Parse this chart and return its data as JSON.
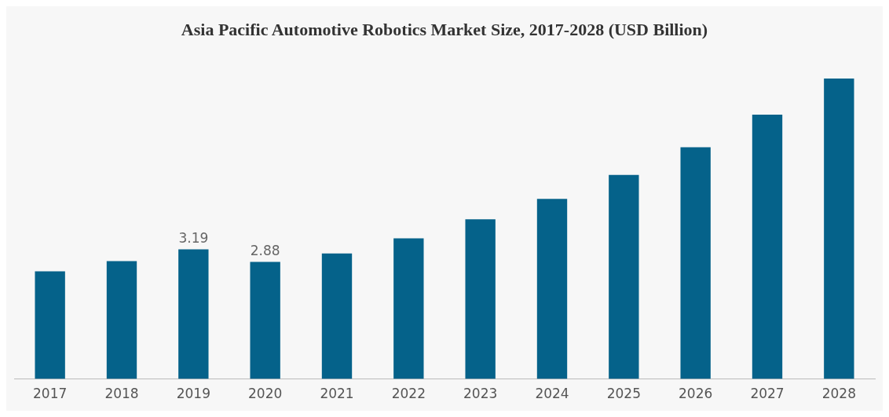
{
  "chart_data": {
    "type": "bar",
    "title": "Asia Pacific Automotive Robotics Market Size, 2017-2028 (USD Billion)",
    "categories": [
      "2017",
      "2018",
      "2019",
      "2020",
      "2021",
      "2022",
      "2023",
      "2024",
      "2025",
      "2026",
      "2027",
      "2028"
    ],
    "values": [
      2.65,
      2.9,
      3.19,
      2.88,
      3.09,
      3.46,
      3.93,
      4.43,
      5.02,
      5.7,
      6.5,
      7.39
    ],
    "value_labels": [
      null,
      null,
      "3.19",
      "2.88",
      null,
      null,
      null,
      null,
      null,
      null,
      null,
      null
    ],
    "color": "#05628a",
    "grid": false,
    "legend": false
  }
}
